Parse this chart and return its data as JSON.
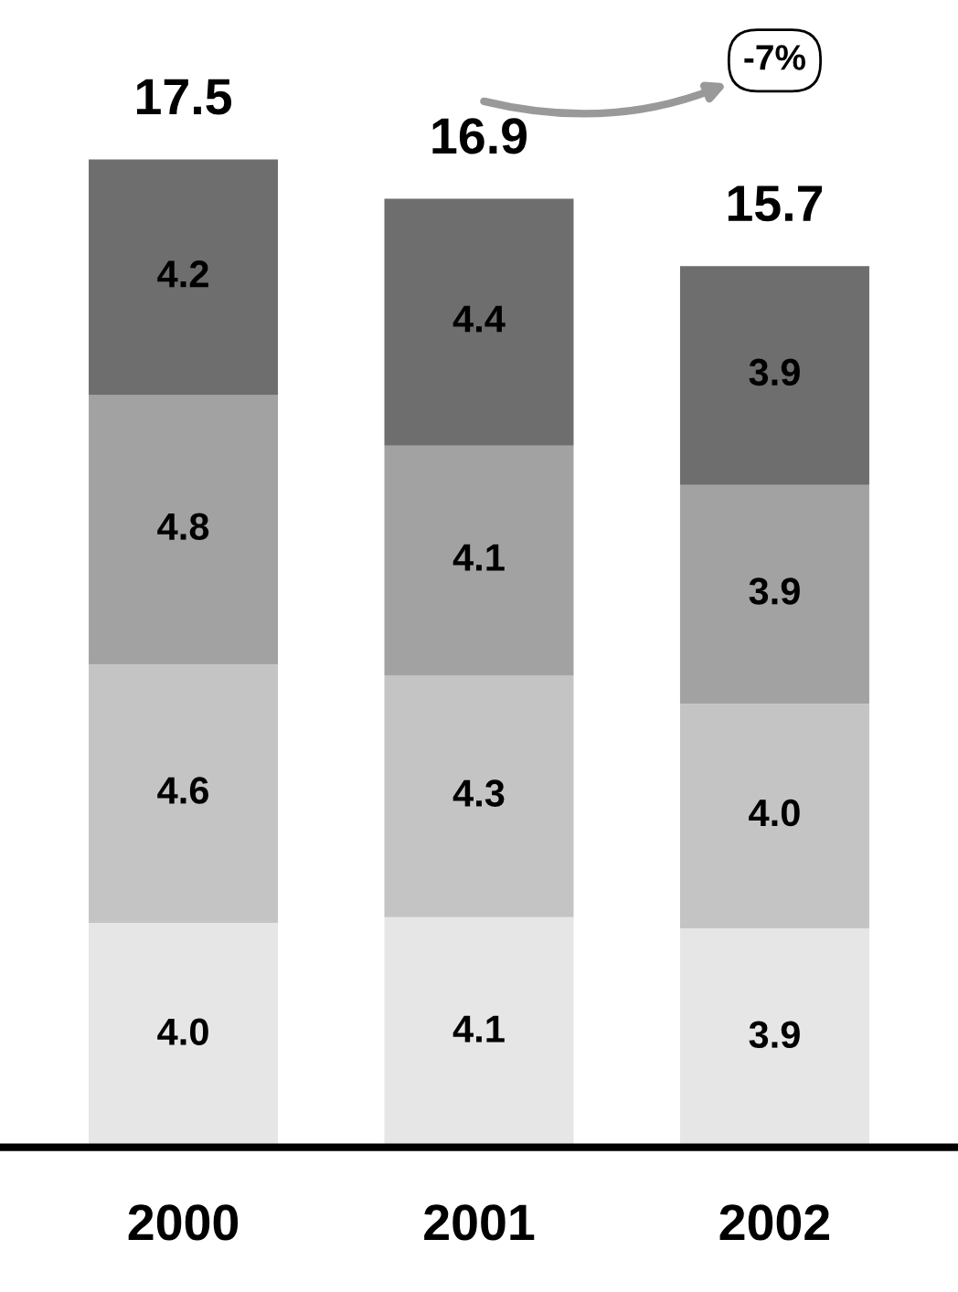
{
  "chart_data": {
    "type": "bar",
    "stacked": true,
    "legend": false,
    "grid": false,
    "categories": [
      "2000",
      "2001",
      "2002"
    ],
    "series": [
      {
        "color": "#e6e6e6",
        "values": [
          4.0,
          4.1,
          3.9
        ],
        "value_labels": [
          "4.0",
          "4.1",
          "3.9"
        ]
      },
      {
        "color": "#c4c4c4",
        "values": [
          4.6,
          4.3,
          4.0
        ],
        "value_labels": [
          "4.6",
          "4.3",
          "4.0"
        ]
      },
      {
        "color": "#a2a2a2",
        "values": [
          4.8,
          4.1,
          3.9
        ],
        "value_labels": [
          "4.8",
          "4.1",
          "3.9"
        ]
      },
      {
        "color": "#6e6e6e",
        "values": [
          4.2,
          4.4,
          3.9
        ],
        "value_labels": [
          "4.2",
          "4.4",
          "3.9"
        ]
      }
    ],
    "totals": [
      "17.5",
      "16.9",
      "15.7"
    ],
    "annotations": [
      "-7%"
    ]
  }
}
